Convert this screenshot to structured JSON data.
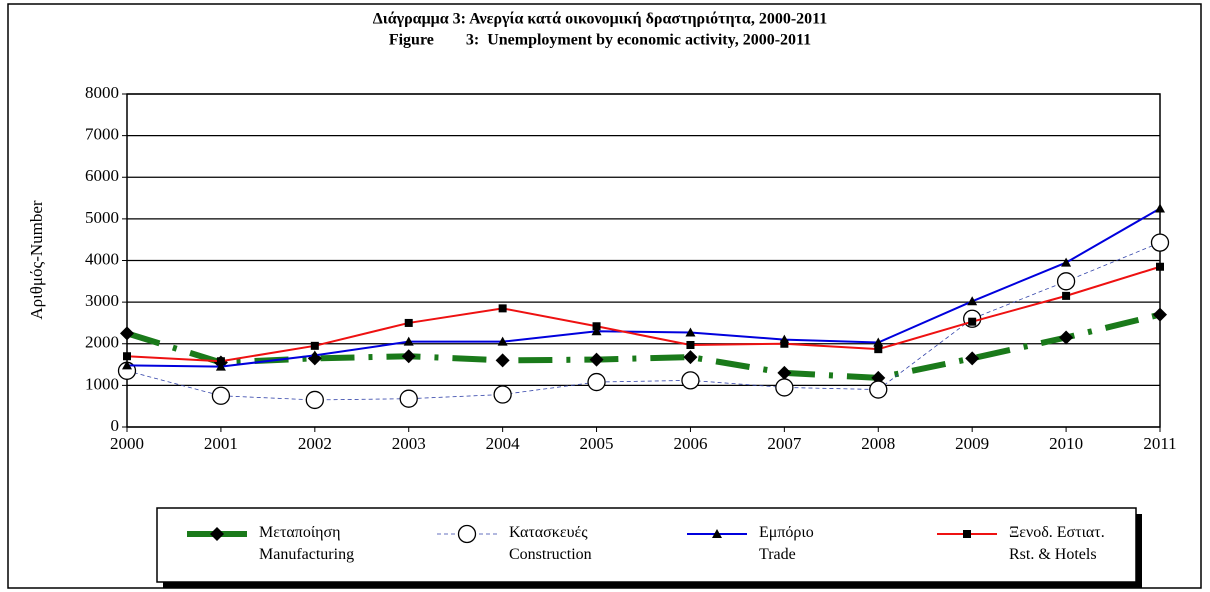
{
  "chart_data": {
    "type": "line",
    "title": "Διάγραμμα  3:  Ανεργία κατά οικονομική δραστηριότητα, 2000-2011",
    "subtitle": "Figure        3:  Unemployment by economic activity, 2000-2011",
    "y_label": "Αριθμός-Number",
    "categories": [
      "2000",
      "2001",
      "2002",
      "2003",
      "2004",
      "2005",
      "2006",
      "2007",
      "2008",
      "2009",
      "2010",
      "2011"
    ],
    "ylim": [
      0,
      8000
    ],
    "yticks": [
      0,
      1000,
      2000,
      3000,
      4000,
      5000,
      6000,
      7000,
      8000
    ],
    "grid": true,
    "series": [
      {
        "name": "Μεταποίηση\nManufacturing",
        "color": "#1a7a1a",
        "marker": "diamond",
        "values": [
          2250,
          1550,
          1650,
          1700,
          1600,
          1620,
          1680,
          1300,
          1180,
          1650,
          2150,
          2700
        ]
      },
      {
        "name": "Κατασκευές\nConstruction",
        "color": "#3344aa",
        "marker": "circle",
        "values": [
          1350,
          750,
          650,
          680,
          780,
          1080,
          1120,
          950,
          900,
          2600,
          3500,
          4430
        ]
      },
      {
        "name": "Εμπόριο\nTrade",
        "color": "#0000dd",
        "marker": "triangle",
        "values": [
          1480,
          1450,
          1720,
          2050,
          2050,
          2300,
          2270,
          2100,
          2030,
          3020,
          3950,
          5250
        ]
      },
      {
        "name": "Ξενοδ. Εστιατ.\nRst. & Hotels",
        "color": "#ee1111",
        "marker": "square",
        "values": [
          1700,
          1580,
          1950,
          2500,
          2850,
          2420,
          1970,
          2000,
          1870,
          2530,
          3150,
          3850
        ]
      }
    ]
  }
}
